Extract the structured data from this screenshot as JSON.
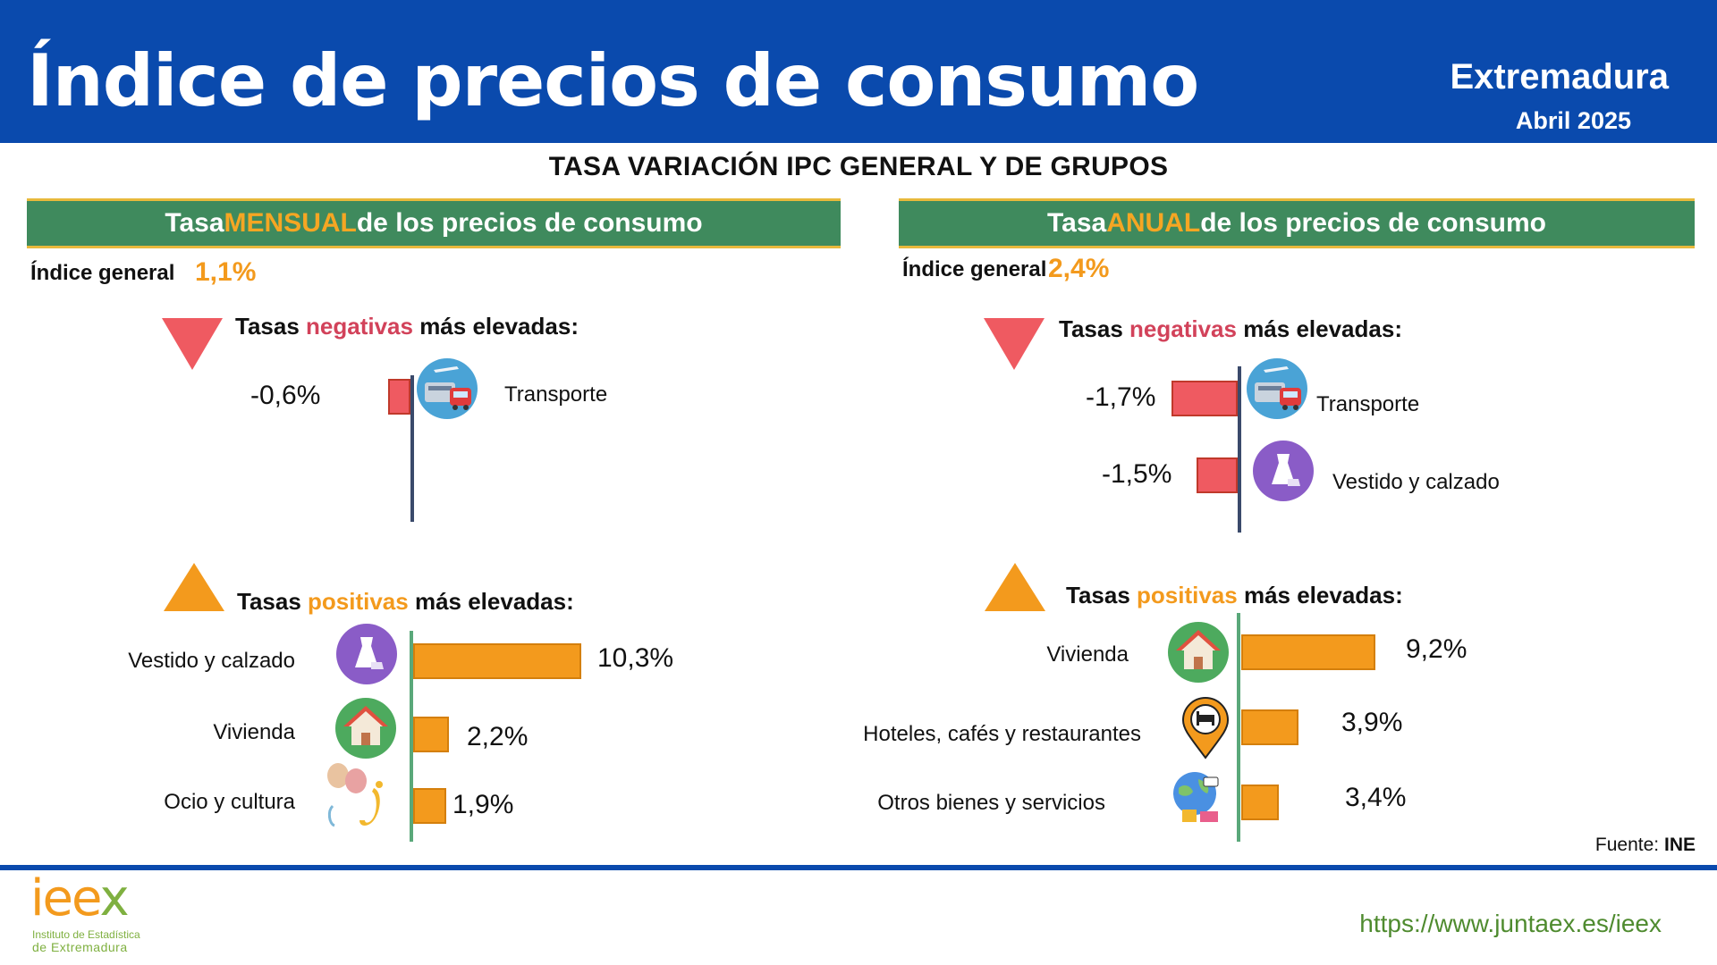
{
  "header": {
    "title": "Índice de precios de consumo",
    "region": "Extremadura",
    "period": "Abril 2025"
  },
  "subtitle": "TASA VARIACIÓN IPC GENERAL Y DE GRUPOS",
  "colors": {
    "header_blue": "#0a4aad",
    "panel_green": "#3f8a5d",
    "negative_red": "#ef5a61",
    "positive_orange": "#f39a1d",
    "url_green": "#4f8b2f"
  },
  "monthly": {
    "head_prefix": "Tasa ",
    "head_highlight": "MENSUAL",
    "head_suffix": " de los precios de consumo",
    "general_label": "Índice general",
    "general_value": "1,1%",
    "neg_title": {
      "a": "Tasas ",
      "b": "negativas",
      "c": " más elevadas:"
    },
    "pos_title": {
      "a": "Tasas ",
      "b": "positivas",
      "c": " más elevadas:"
    },
    "negative": [
      {
        "category": "Transporte",
        "value_label": "-0,6%",
        "value": -0.6,
        "icon": "transport-icon"
      }
    ],
    "positive": [
      {
        "category": "Vestido y calzado",
        "value_label": "10,3%",
        "value": 10.3,
        "icon": "dress-icon"
      },
      {
        "category": "Vivienda",
        "value_label": "2,2%",
        "value": 2.2,
        "icon": "house-icon"
      },
      {
        "category": "Ocio y cultura",
        "value_label": "1,9%",
        "value": 1.9,
        "icon": "theater-music-icon"
      }
    ]
  },
  "annual": {
    "head_prefix": "Tasa ",
    "head_highlight": "ANUAL",
    "head_suffix": " de los precios de consumo",
    "general_label": "Índice general",
    "general_value": "2,4%",
    "neg_title": {
      "a": "Tasas ",
      "b": "negativas",
      "c": " más elevadas:"
    },
    "pos_title": {
      "a": "Tasas ",
      "b": "positivas",
      "c": " más elevadas:"
    },
    "negative": [
      {
        "category": "Transporte",
        "value_label": "-1,7%",
        "value": -1.7,
        "icon": "transport-icon"
      },
      {
        "category": "Vestido y calzado",
        "value_label": "-1,5%",
        "value": -1.5,
        "icon": "dress-icon"
      }
    ],
    "positive": [
      {
        "category": "Vivienda",
        "value_label": "9,2%",
        "value": 9.2,
        "icon": "house-icon"
      },
      {
        "category": "Hoteles, cafés y restaurantes",
        "value_label": "3,9%",
        "value": 3.9,
        "icon": "hotel-pin-icon"
      },
      {
        "category": "Otros bienes y servicios",
        "value_label": "3,4%",
        "value": 3.4,
        "icon": "globe-goods-icon"
      }
    ]
  },
  "source": {
    "label": "Fuente:",
    "value": "INE"
  },
  "footer": {
    "logo_a": "iee",
    "logo_b": "x",
    "logo_line1": "Instituto de Estadística",
    "logo_line2": "de Extremadura",
    "url": "https://www.juntaex.es/ieex"
  }
}
